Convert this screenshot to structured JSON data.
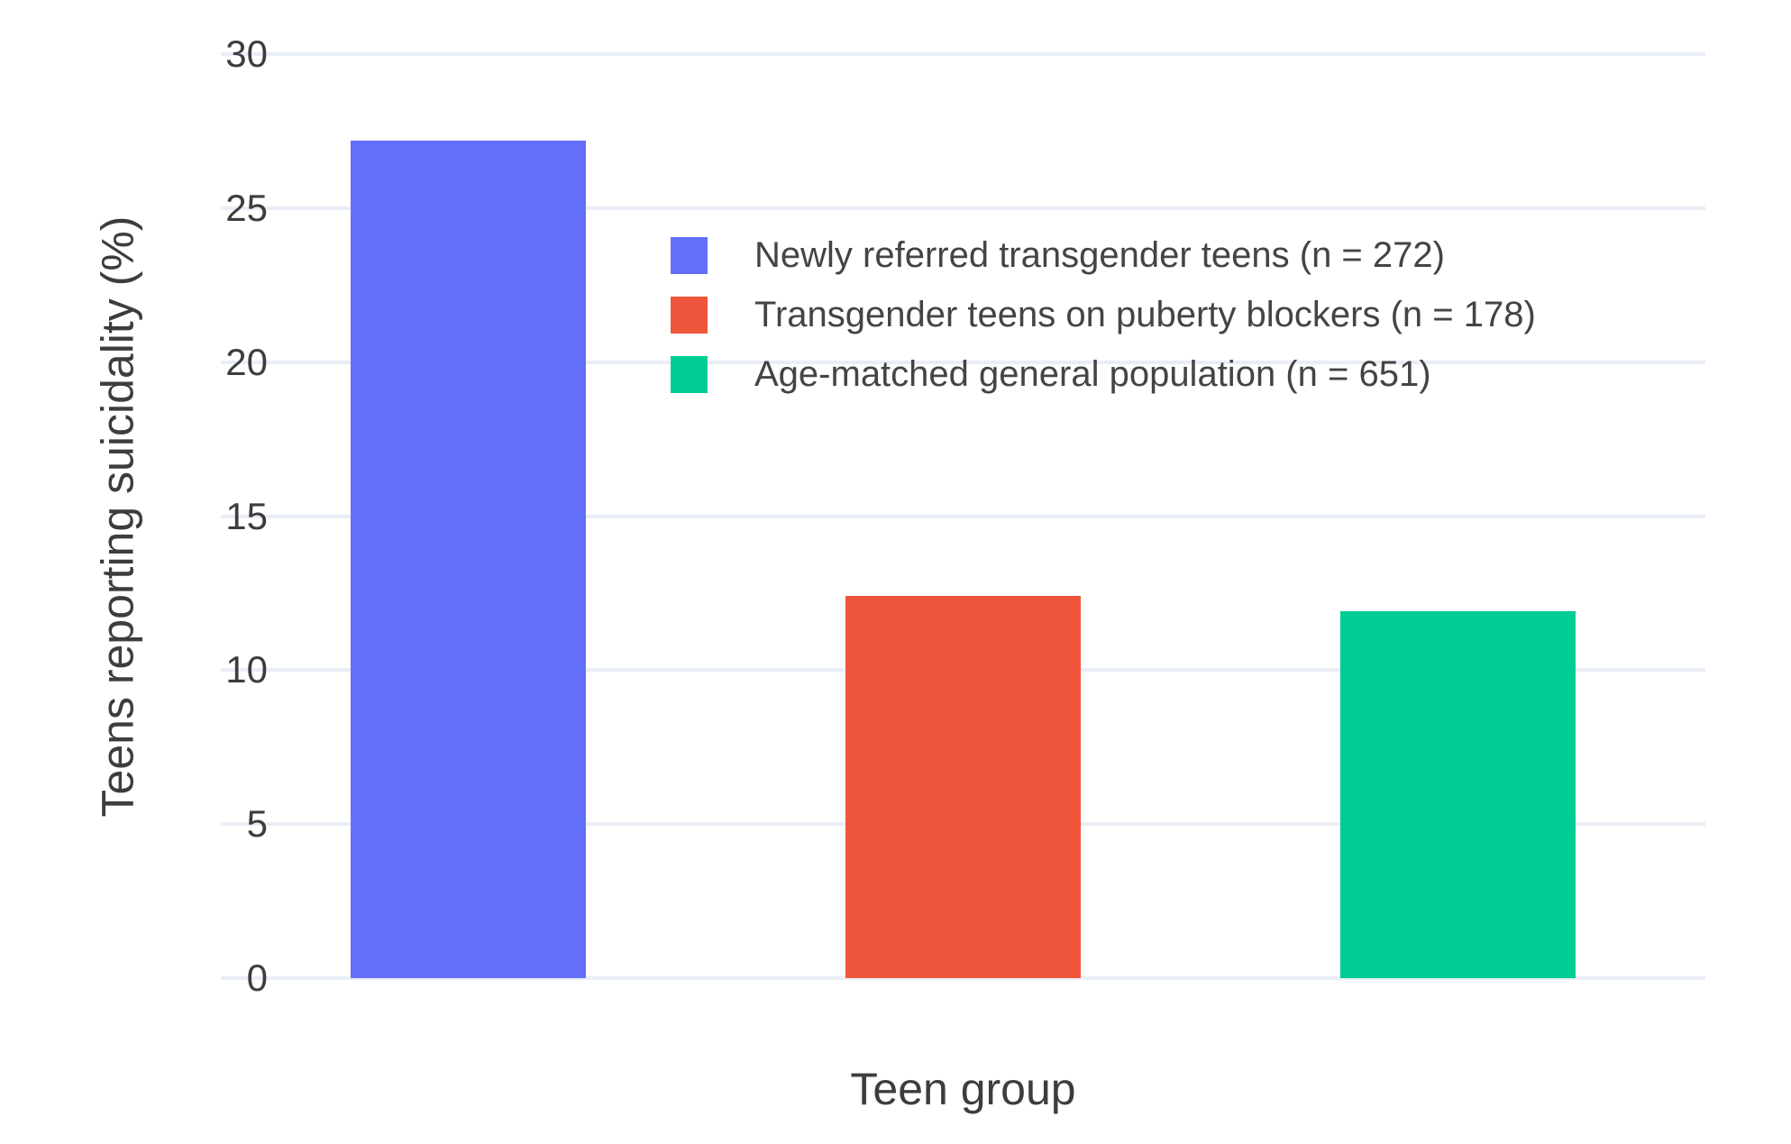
{
  "chart_data": {
    "type": "bar",
    "title": "",
    "xlabel": "Teen group",
    "ylabel": "Teens reporting suicidality (%)",
    "ylim": [
      0,
      30
    ],
    "yticks": [
      0,
      5,
      10,
      15,
      20,
      25,
      30
    ],
    "grid": true,
    "grid_color": "#E9EEF6",
    "text_color": "#3d3d3d",
    "background_color": "#FFFFFF",
    "legend_position": "inside top-left of plot area",
    "series": [
      {
        "name": "Newly referred transgender teens (n = 272)",
        "value": 27.2,
        "color": "#636EFA"
      },
      {
        "name": "Transgender teens on puberty blockers (n = 178)",
        "value": 12.4,
        "color": "#EF553B"
      },
      {
        "name": "Age-matched general population (n = 651)",
        "value": 11.9,
        "color": "#00CC96"
      }
    ]
  }
}
